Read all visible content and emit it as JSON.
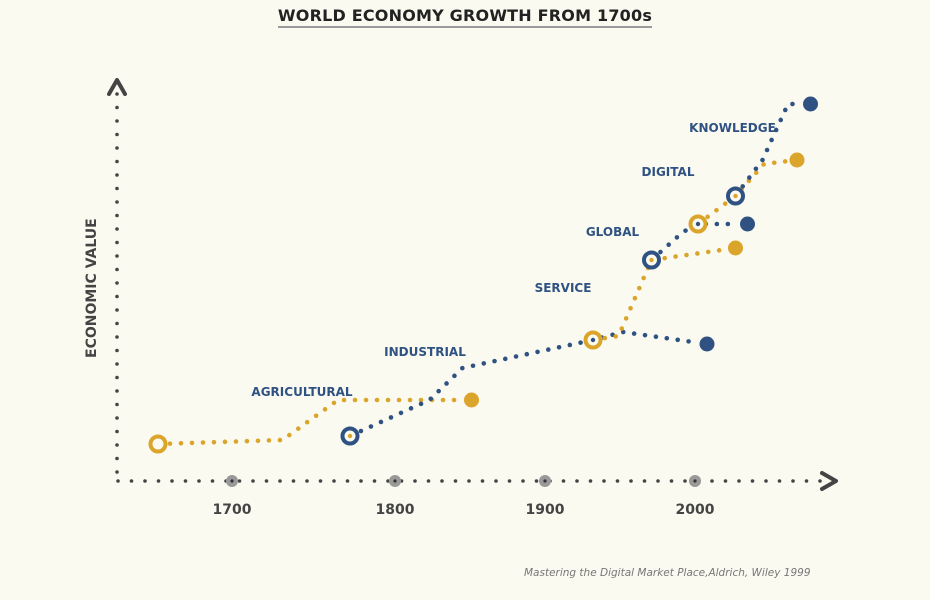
{
  "chart_data": {
    "type": "line",
    "title": "WORLD ECONOMY GROWTH FROM 1700s",
    "xlabel": "",
    "ylabel": "ECONOMIC VALUE",
    "xticks": [
      1700,
      1800,
      1900,
      2000
    ],
    "xlim": [
      1590,
      2160
    ],
    "ylim": [
      0,
      100
    ],
    "grid": false,
    "legend": "none",
    "colors": {
      "gold": "#dba42a",
      "blue": "#2f5283",
      "axis": "#444444",
      "tick_dot": "#999999"
    },
    "series": [
      {
        "name": "AGRICULTURAL",
        "color": "gold",
        "start": {
          "year": 1642,
          "value": 9
        },
        "end": {
          "year": 1851,
          "value": 20
        },
        "path": [
          [
            1642,
            9
          ],
          [
            1725,
            10
          ],
          [
            1762,
            20
          ],
          [
            1851,
            20
          ]
        ],
        "label_at": [
          1738,
          21
        ]
      },
      {
        "name": "INDUSTRIAL",
        "color": "blue",
        "start": {
          "year": 1770,
          "value": 11
        },
        "end": {
          "year": 2008,
          "value": 34
        },
        "path": [
          [
            1770,
            11
          ],
          [
            1823,
            20
          ],
          [
            1845,
            28
          ],
          [
            1932,
            35
          ],
          [
            1952,
            37
          ],
          [
            2008,
            34
          ]
        ],
        "label_at": [
          1820,
          31
        ]
      },
      {
        "name": "SERVICE",
        "color": "gold",
        "start": {
          "year": 1932,
          "value": 35
        },
        "end": {
          "year": 2027,
          "value": 58
        },
        "path": [
          [
            1932,
            35
          ],
          [
            1949,
            36
          ],
          [
            1971,
            55
          ],
          [
            2027,
            58
          ]
        ],
        "label_at": [
          1912,
          47
        ]
      },
      {
        "name": "GLOBAL",
        "color": "blue",
        "start": {
          "year": 1971,
          "value": 55
        },
        "end": {
          "year": 2035,
          "value": 64
        },
        "path": [
          [
            1971,
            55
          ],
          [
            1992,
            62
          ],
          [
            2002,
            64
          ],
          [
            2035,
            64
          ]
        ],
        "label_at": [
          1945,
          61
        ]
      },
      {
        "name": "DIGITAL",
        "color": "gold",
        "start": {
          "year": 2002,
          "value": 64
        },
        "end": {
          "year": 2068,
          "value": 80
        },
        "path": [
          [
            2002,
            64
          ],
          [
            2027,
            71
          ],
          [
            2046,
            79
          ],
          [
            2068,
            80
          ]
        ],
        "label_at": [
          1982,
          76
        ]
      },
      {
        "name": "KNOWLEDGE",
        "color": "blue",
        "start": {
          "year": 2027,
          "value": 71
        },
        "end": {
          "year": 2077,
          "value": 94
        },
        "path": [
          [
            2027,
            71
          ],
          [
            2045,
            80
          ],
          [
            2062,
            94
          ],
          [
            2077,
            94
          ]
        ],
        "label_at": [
          2025,
          87
        ]
      }
    ],
    "annotation": "Mastering the Digital Market Place,Aldrich, Wiley 1999"
  }
}
